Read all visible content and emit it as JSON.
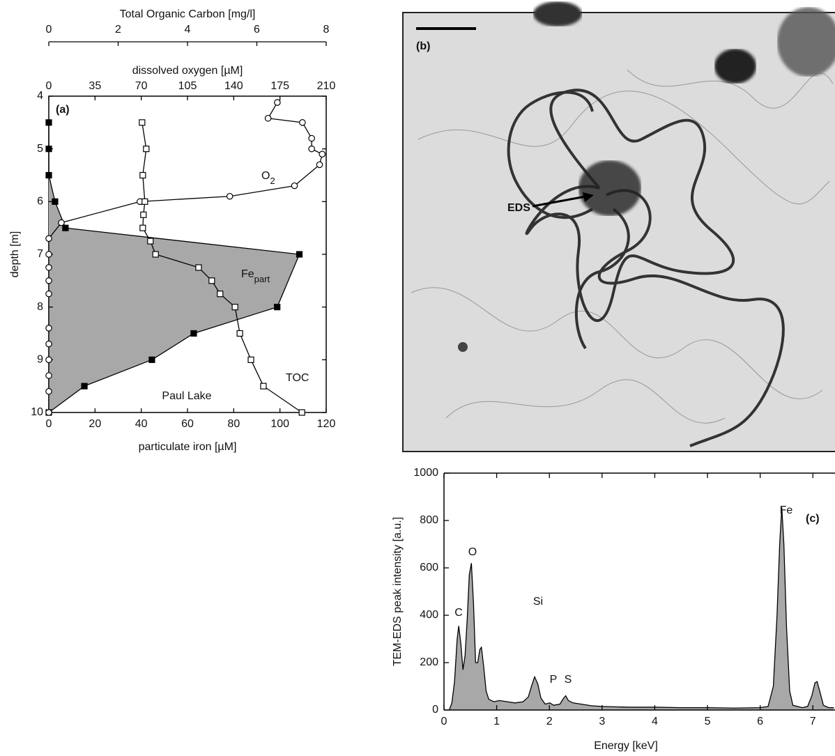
{
  "chart_data": [
    {
      "type": "profile",
      "panel_label": "(a)",
      "site_label": "Paul Lake",
      "ylabel": "depth  [m]",
      "ylim": [
        4,
        10
      ],
      "yticks": [
        4,
        5,
        6,
        7,
        8,
        9,
        10
      ],
      "xlabel": "particulate iron  [µM]",
      "xlim": [
        0,
        120
      ],
      "xticks": [
        0,
        20,
        40,
        60,
        80,
        100,
        120
      ],
      "x2label": "dissolved oxygen  [µM]",
      "x2lim": [
        0,
        210
      ],
      "x2ticks": [
        0,
        35,
        70,
        105,
        140,
        175,
        210
      ],
      "x3label": "Total Organic Carbon  [mg/l]",
      "x3lim": [
        0,
        8
      ],
      "x3ticks": [
        0,
        2,
        4,
        6,
        8
      ],
      "series": [
        {
          "name": "Fe",
          "name_subscript": "part",
          "axis": "x",
          "marker": "filled-square",
          "color": "#000000",
          "fill": "#a8a8a8",
          "depth": [
            4.5,
            5,
            5.5,
            6,
            6.5,
            7,
            8,
            8.5,
            9,
            9.5,
            10
          ],
          "values": [
            0,
            0,
            0,
            2.7,
            7.2,
            108.4,
            98.8,
            62.7,
            44.6,
            15.4,
            0
          ]
        },
        {
          "name": "O",
          "name_subscript": "2",
          "axis": "x2",
          "marker": "open-circle",
          "color": "#000000",
          "depth": [
            4.12,
            4.42,
            4.5,
            4.8,
            5.0,
            5.1,
            5.3,
            5.7,
            5.9,
            6.0,
            6.4,
            6.7,
            7.0,
            7.25,
            7.5,
            7.75,
            8.4,
            8.7,
            9.0,
            9.3,
            9.6,
            10.0
          ],
          "values": [
            173,
            166,
            192,
            199,
            199,
            207,
            205,
            186,
            137,
            69,
            9.5,
            0,
            0,
            0,
            0,
            0,
            0,
            0,
            0,
            0,
            0,
            0
          ]
        },
        {
          "name": "TOC",
          "axis": "x3",
          "marker": "open-square",
          "color": "#000000",
          "depth": [
            4.5,
            5.0,
            5.5,
            6.0,
            6.25,
            6.5,
            6.75,
            7.0,
            7.25,
            7.5,
            7.75,
            8.0,
            8.5,
            9.0,
            9.5,
            10.0
          ],
          "values": [
            2.69,
            2.81,
            2.71,
            2.77,
            2.73,
            2.71,
            2.93,
            3.08,
            4.32,
            4.7,
            4.94,
            5.37,
            5.51,
            5.83,
            6.19,
            7.3
          ]
        }
      ]
    },
    {
      "type": "spectrum",
      "panel_label": "(c)",
      "xlabel": "Energy [keV]",
      "ylabel": "TEM-EDS peak intensity [a.u.]",
      "xlim": [
        0,
        7.42
      ],
      "xticks": [
        0,
        1,
        2,
        3,
        4,
        5,
        6,
        7
      ],
      "ylim": [
        0,
        1000
      ],
      "yticks": [
        0,
        200,
        400,
        600,
        800,
        1000
      ],
      "color": "#000000",
      "fill": "#a8a8a8",
      "x": [
        0.1,
        0.15,
        0.2,
        0.25,
        0.28,
        0.32,
        0.36,
        0.4,
        0.44,
        0.48,
        0.52,
        0.56,
        0.6,
        0.64,
        0.68,
        0.71,
        0.75,
        0.8,
        0.85,
        0.95,
        1.05,
        1.2,
        1.35,
        1.5,
        1.6,
        1.66,
        1.72,
        1.78,
        1.84,
        1.92,
        2.01,
        2.08,
        2.2,
        2.27,
        2.31,
        2.36,
        2.45,
        2.6,
        2.8,
        3.0,
        3.5,
        4.0,
        4.5,
        5.0,
        5.5,
        6.0,
        6.15,
        6.25,
        6.32,
        6.37,
        6.41,
        6.45,
        6.5,
        6.56,
        6.62,
        6.8,
        6.9,
        6.98,
        7.04,
        7.08,
        7.13,
        7.2,
        7.3,
        7.4
      ],
      "values": [
        0,
        30,
        120,
        300,
        355,
        280,
        170,
        230,
        380,
        570,
        620,
        450,
        200,
        200,
        255,
        265,
        190,
        80,
        45,
        35,
        40,
        35,
        30,
        35,
        55,
        100,
        140,
        110,
        50,
        25,
        30,
        20,
        25,
        50,
        60,
        40,
        30,
        25,
        18,
        15,
        12,
        12,
        10,
        10,
        8,
        10,
        15,
        100,
        400,
        700,
        855,
        700,
        350,
        80,
        20,
        10,
        15,
        60,
        115,
        120,
        80,
        20,
        10,
        10
      ],
      "peak_labels": [
        "C",
        "O",
        "Si",
        "P",
        "S",
        "Fe"
      ]
    }
  ],
  "image_panel": {
    "panel_label": "(b)",
    "annotation": "EDS"
  }
}
